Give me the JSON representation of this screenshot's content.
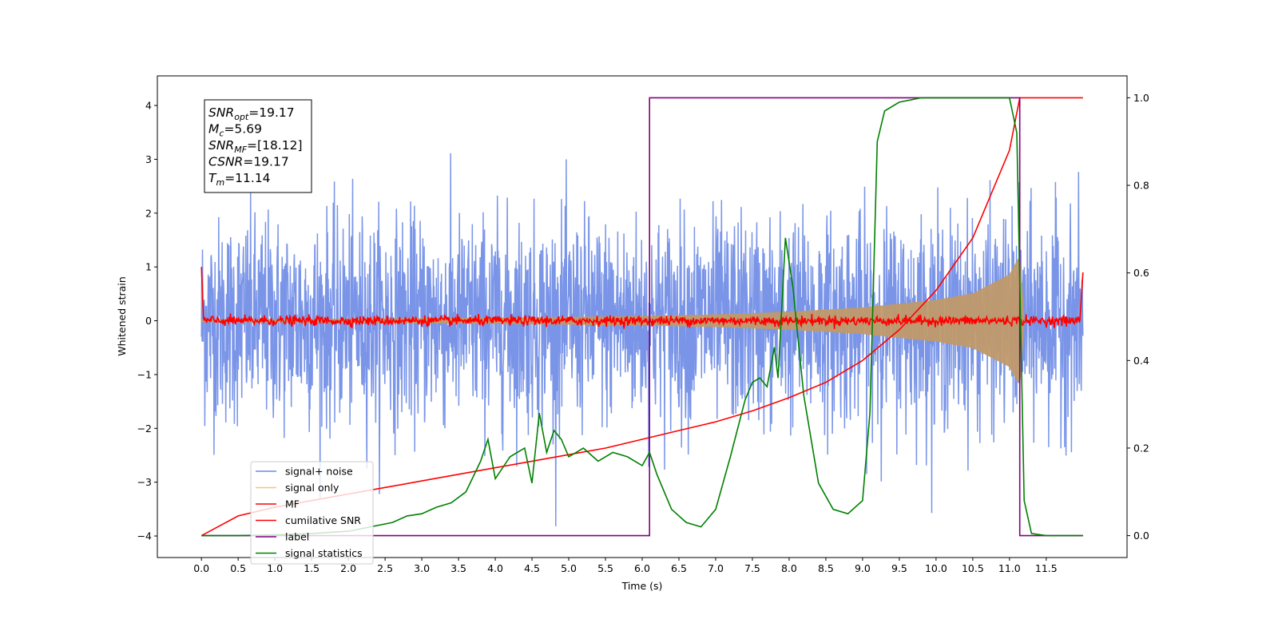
{
  "chart_data": {
    "type": "line",
    "xlabel": "Time (s)",
    "ylabel": "Whitened strain",
    "xlim": [
      -0.6,
      12.6
    ],
    "ylim": [
      -4.4,
      4.55
    ],
    "y2lim": [
      -0.05,
      1.05
    ],
    "x_ticks": [
      "0.0",
      "0.5",
      "1.0",
      "1.5",
      "2.0",
      "2.5",
      "3.0",
      "3.5",
      "4.0",
      "4.5",
      "5.0",
      "5.5",
      "6.0",
      "6.5",
      "7.0",
      "7.5",
      "8.0",
      "8.5",
      "9.0",
      "9.5",
      "10.0",
      "10.5",
      "11.0",
      "11.5"
    ],
    "y_ticks": [
      "-4",
      "-3",
      "-2",
      "-1",
      "0",
      "1",
      "2",
      "3",
      "4"
    ],
    "y2_ticks": [
      "0.0",
      "0.2",
      "0.4",
      "0.6",
      "0.8",
      "1.0"
    ],
    "info_box": [
      {
        "base": "SNR",
        "sub": "opt",
        "rest": "=19.17"
      },
      {
        "base": "M",
        "sub": "c",
        "rest": "=5.69"
      },
      {
        "base": "SNR",
        "sub": "MF",
        "rest": "=[18.12]"
      },
      {
        "base": "CSNR",
        "sub": "",
        "rest": "=19.17"
      },
      {
        "base": "T",
        "sub": "m",
        "rest": "=11.14"
      }
    ],
    "legend_position": "lower-left",
    "colors": {
      "signal_noise": "#6b8ae6",
      "signal_only": "#f4c77a",
      "mf": "#ff0000",
      "cumulative_snr": "#ff0000",
      "label": "#800080",
      "signal_statistics": "#008000"
    },
    "series": [
      {
        "name": "signal+ noise",
        "key": "signal_noise",
        "axis": "left",
        "description_values": {
          "x_range": [
            0.0,
            12.0
          ],
          "noise_std": 0.95,
          "approx_range": [
            -4.0,
            4.2
          ]
        }
      },
      {
        "name": "signal only",
        "key": "signal_only",
        "axis": "left",
        "chirp_envelope": {
          "x": [
            0.0,
            2.0,
            4.0,
            6.0,
            7.0,
            8.0,
            9.0,
            10.0,
            10.5,
            11.0,
            11.14,
            11.2
          ],
          "amp": [
            0.02,
            0.03,
            0.05,
            0.08,
            0.11,
            0.16,
            0.24,
            0.38,
            0.5,
            0.85,
            1.2,
            0.0
          ]
        }
      },
      {
        "name": "MF",
        "key": "mf",
        "axis": "left",
        "description_values": {
          "center": 0.0,
          "edge_values": [
            1.0,
            0.9
          ]
        }
      },
      {
        "name": "cumilative SNR",
        "key": "cumulative_snr",
        "axis": "right",
        "x": [
          0.0,
          0.5,
          1.0,
          1.5,
          2.0,
          2.5,
          3.0,
          3.5,
          4.0,
          4.5,
          5.0,
          5.5,
          6.0,
          6.5,
          7.0,
          7.5,
          8.0,
          8.5,
          9.0,
          9.5,
          10.0,
          10.5,
          11.0,
          11.14,
          12.0
        ],
        "values": [
          0.0,
          0.045,
          0.065,
          0.08,
          0.095,
          0.11,
          0.125,
          0.14,
          0.155,
          0.17,
          0.185,
          0.2,
          0.22,
          0.24,
          0.26,
          0.285,
          0.315,
          0.35,
          0.4,
          0.47,
          0.56,
          0.68,
          0.88,
          1.0,
          1.0
        ]
      },
      {
        "name": "label",
        "key": "label",
        "axis": "right",
        "x": [
          0.0,
          6.1,
          6.1,
          11.14,
          11.14,
          12.0
        ],
        "values": [
          0.0,
          0.0,
          1.0,
          1.0,
          0.0,
          0.0
        ]
      },
      {
        "name": "signal statistics",
        "key": "signal_statistics",
        "axis": "right",
        "x": [
          0.0,
          0.5,
          1.0,
          1.5,
          2.0,
          2.3,
          2.6,
          2.8,
          3.0,
          3.2,
          3.4,
          3.6,
          3.8,
          3.9,
          4.0,
          4.2,
          4.4,
          4.5,
          4.6,
          4.7,
          4.8,
          4.9,
          5.0,
          5.2,
          5.4,
          5.6,
          5.8,
          6.0,
          6.1,
          6.2,
          6.4,
          6.6,
          6.8,
          7.0,
          7.2,
          7.4,
          7.5,
          7.6,
          7.7,
          7.8,
          7.85,
          7.95,
          8.05,
          8.2,
          8.4,
          8.6,
          8.8,
          9.0,
          9.1,
          9.2,
          9.3,
          9.5,
          9.8,
          10.0,
          10.5,
          11.0,
          11.1,
          11.2,
          11.3,
          11.5,
          12.0
        ],
        "values": [
          0.0,
          0.0,
          0.002,
          0.005,
          0.01,
          0.02,
          0.03,
          0.045,
          0.05,
          0.065,
          0.075,
          0.1,
          0.17,
          0.22,
          0.13,
          0.18,
          0.2,
          0.12,
          0.28,
          0.19,
          0.24,
          0.22,
          0.18,
          0.2,
          0.17,
          0.19,
          0.18,
          0.16,
          0.19,
          0.14,
          0.06,
          0.03,
          0.02,
          0.06,
          0.18,
          0.31,
          0.35,
          0.36,
          0.34,
          0.43,
          0.36,
          0.68,
          0.57,
          0.32,
          0.12,
          0.06,
          0.05,
          0.08,
          0.28,
          0.9,
          0.97,
          0.99,
          1.0,
          1.0,
          1.0,
          1.0,
          0.92,
          0.08,
          0.005,
          0.0,
          0.0
        ]
      }
    ]
  }
}
